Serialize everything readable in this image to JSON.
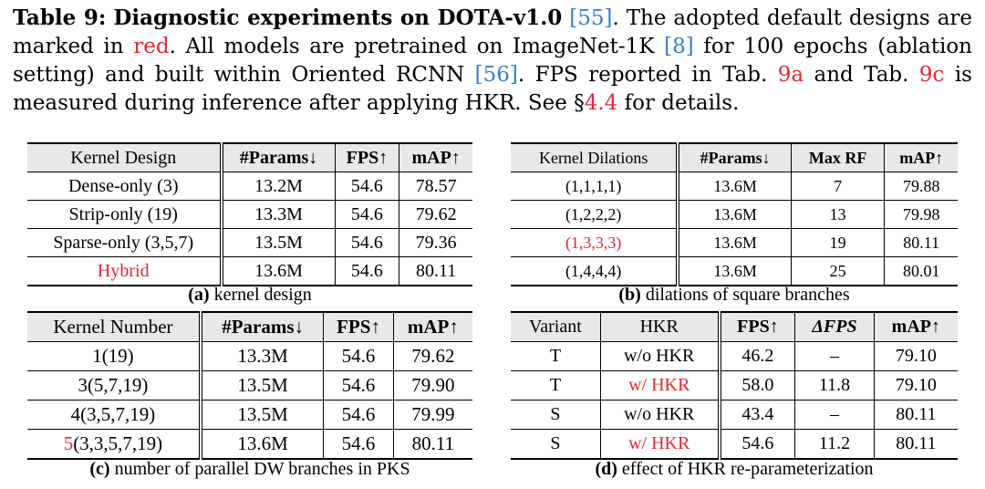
{
  "caption": {
    "table_label": "Table 9:",
    "title": "Diagnostic experiments on DOTA-v1.0",
    "ref_dota": "[55]",
    "text1": ". The adopted default designs are marked in ",
    "red_word": "red",
    "text2": ". All models are pretrained on ImageNet-1K ",
    "ref_imagenet": "[8]",
    "text3": " for 100 epochs (ablation setting) and built within Oriented RCNN ",
    "ref_rcnn": "[56]",
    "text4": ". FPS reported in Tab. ",
    "ref_9a": "9a",
    "text5": " and Tab. ",
    "ref_9c": "9c",
    "text6": " is measured during inference after applying HKR. See §",
    "ref_sec": "4.4",
    "text7": " for details."
  },
  "table_a": {
    "headers": [
      "Kernel Design",
      "#Params↓",
      "FPS↑",
      "mAP↑"
    ],
    "rows": [
      [
        "Dense-only (3)",
        "13.2M",
        "54.6",
        "78.57"
      ],
      [
        "Strip-only (19)",
        "13.3M",
        "54.6",
        "79.62"
      ],
      [
        "Sparse-only (3,5,7)",
        "13.5M",
        "54.6",
        "79.36"
      ],
      [
        "Hybrid",
        "13.6M",
        "54.6",
        "80.11"
      ]
    ],
    "caption_letter": "(a)",
    "caption_text": "kernel design"
  },
  "table_b": {
    "headers": [
      "Kernel Dilations",
      "#Params↓",
      "Max RF",
      "mAP↑"
    ],
    "rows": [
      [
        "(1,1,1,1)",
        "13.6M",
        "7",
        "79.88"
      ],
      [
        "(1,2,2,2)",
        "13.6M",
        "13",
        "79.98"
      ],
      [
        "(1,3,3,3)",
        "13.6M",
        "19",
        "80.11"
      ],
      [
        "(1,4,4,4)",
        "13.6M",
        "25",
        "80.01"
      ]
    ],
    "caption_letter": "(b)",
    "caption_text": "dilations of square branches"
  },
  "table_c": {
    "headers": [
      "Kernel Number",
      "#Params↓",
      "FPS↑",
      "mAP↑"
    ],
    "rows": [
      [
        "1(19)",
        "13.3M",
        "54.6",
        "79.62"
      ],
      [
        "3(5,7,19)",
        "13.5M",
        "54.6",
        "79.90"
      ],
      [
        "4(3,5,7,19)",
        "13.5M",
        "54.6",
        "79.99"
      ],
      [
        "(3,3,5,7,19)",
        "13.6M",
        "54.6",
        "80.11"
      ]
    ],
    "last_row_prefix": "5",
    "caption_letter": "(c)",
    "caption_text": "number of parallel DW branches in PKS"
  },
  "table_d": {
    "headers": [
      "Variant",
      "HKR",
      "FPS↑",
      "ΔFPS",
      "mAP↑"
    ],
    "rows": [
      [
        "T",
        "w/o HKR",
        "46.2",
        "–",
        "79.10"
      ],
      [
        "T",
        "w/ HKR",
        "58.0",
        "11.8",
        "79.10"
      ],
      [
        "S",
        "w/o HKR",
        "43.4",
        "–",
        "80.11"
      ],
      [
        "S",
        "w/ HKR",
        "54.6",
        "11.2",
        "80.11"
      ]
    ],
    "caption_letter": "(d)",
    "caption_text": "effect of HKR re-parameterization"
  },
  "colors": {
    "highlight_red": "#e8262e",
    "link_blue": "#3a7fc8",
    "header_gray": "#e8e8e8"
  }
}
